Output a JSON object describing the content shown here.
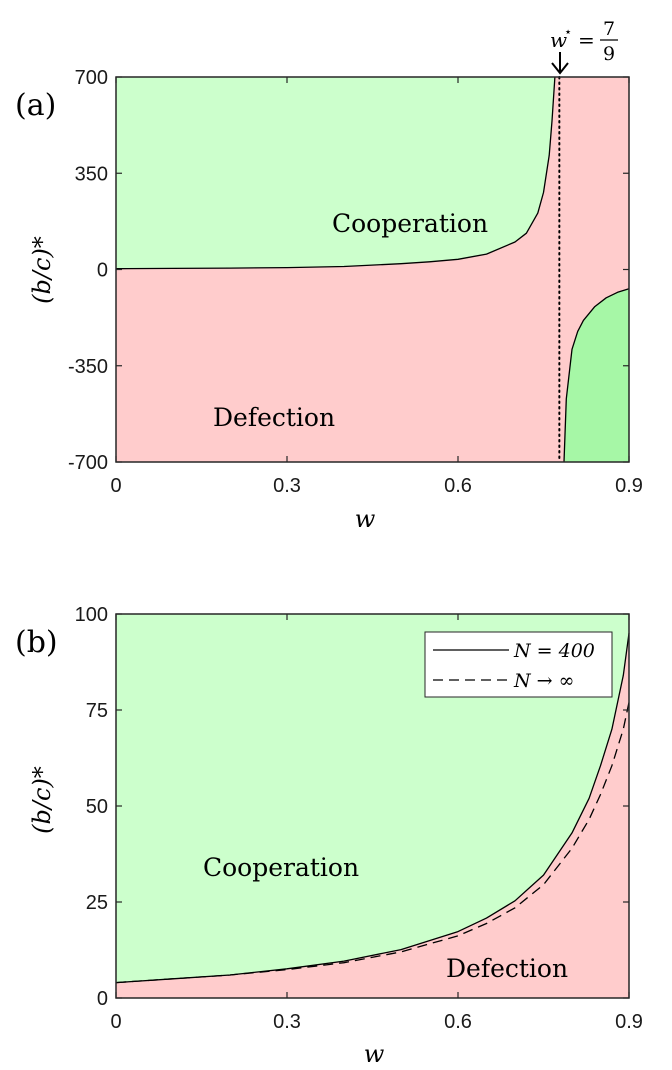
{
  "chart_data": [
    {
      "panel": "(a)",
      "type": "area",
      "xlabel": "w",
      "ylabel": "(b/c)*",
      "xlim": [
        0,
        0.9
      ],
      "ylim": [
        -700,
        700
      ],
      "xticks": [
        0,
        0.3,
        0.6,
        0.9
      ],
      "xtick_labels": [
        "0",
        "0.3",
        "0.6",
        "0.9"
      ],
      "yticks": [
        700,
        350,
        0,
        -350,
        -700
      ],
      "ytick_labels": [
        "700",
        "350",
        "0",
        "-350",
        "-700"
      ],
      "asymptote": {
        "w": 0.7778,
        "label_lhs": "w",
        "label_sup": "⋆",
        "label_eq": "=",
        "label_num": "7",
        "label_den": "9"
      },
      "boundary_left": {
        "x": [
          0,
          0.1,
          0.2,
          0.3,
          0.4,
          0.5,
          0.55,
          0.6,
          0.65,
          0.7,
          0.72,
          0.74,
          0.75,
          0.76,
          0.765,
          0.77
        ],
        "y": [
          3,
          4,
          5,
          7,
          11,
          21,
          28,
          37,
          56,
          100,
          132,
          205,
          280,
          415,
          540,
          700
        ]
      },
      "boundary_right": {
        "x": [
          0.786,
          0.79,
          0.8,
          0.81,
          0.82,
          0.84,
          0.86,
          0.88,
          0.9
        ],
        "y": [
          -700,
          -470,
          -290,
          -225,
          -185,
          -135,
          -103,
          -83,
          -70
        ]
      },
      "regions": [
        {
          "name": "Cooperation",
          "color": "#ccffcc"
        },
        {
          "name": "Defection",
          "color": "#ffcccc"
        },
        {
          "name": "",
          "color": "#a6f7a6"
        }
      ],
      "annotations": [
        "Cooperation",
        "Defection"
      ]
    },
    {
      "panel": "(b)",
      "type": "area",
      "xlabel": "w",
      "ylabel": "(b/c)*",
      "xlim": [
        0,
        0.9
      ],
      "ylim": [
        0,
        100
      ],
      "xticks": [
        0,
        0.3,
        0.6,
        0.9
      ],
      "xtick_labels": [
        "0",
        "0.3",
        "0.6",
        "0.9"
      ],
      "yticks": [
        100,
        75,
        50,
        25,
        0
      ],
      "ytick_labels": [
        "100",
        "75",
        "50",
        "25",
        "0"
      ],
      "series": [
        {
          "name": "N = 400",
          "style": "solid",
          "x": [
            0,
            0.1,
            0.2,
            0.3,
            0.4,
            0.5,
            0.6,
            0.65,
            0.7,
            0.75,
            0.8,
            0.83,
            0.85,
            0.87,
            0.89,
            0.9
          ],
          "y": [
            4,
            5,
            6,
            7.6,
            9.6,
            12.6,
            17.3,
            20.8,
            25.3,
            32,
            43,
            52,
            60.5,
            70,
            84,
            95
          ]
        },
        {
          "name": "N → ∞",
          "style": "dashed",
          "x": [
            0,
            0.1,
            0.2,
            0.3,
            0.4,
            0.5,
            0.6,
            0.65,
            0.7,
            0.75,
            0.8,
            0.83,
            0.85,
            0.87,
            0.89,
            0.9
          ],
          "y": [
            4,
            5,
            6,
            7.4,
            9.2,
            12,
            16.2,
            19.4,
            23.5,
            29.5,
            39,
            46.5,
            53,
            60.5,
            70,
            77
          ]
        }
      ],
      "legend": {
        "position": "top-right"
      },
      "regions": [
        {
          "name": "Cooperation",
          "color": "#ccffcc"
        },
        {
          "name": "Defection",
          "color": "#ffcccc"
        }
      ],
      "annotations": [
        "Cooperation",
        "Defection"
      ]
    }
  ]
}
